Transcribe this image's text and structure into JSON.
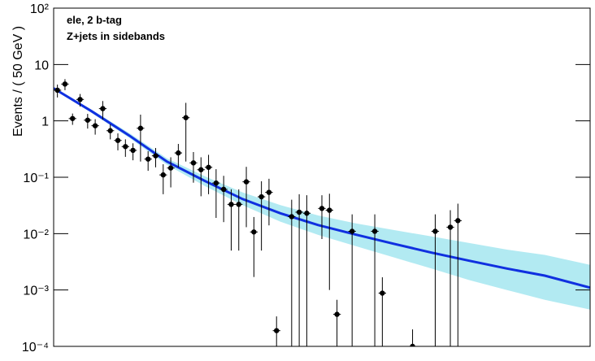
{
  "chart_data": {
    "type": "scatter",
    "ylabel": "Events / ( 50 GeV )",
    "annotations": [
      "ele, 2 b-tag",
      "Z+jets in sidebands"
    ],
    "log_y": true,
    "xlim": [
      0,
      3550
    ],
    "ylim": [
      0.0001,
      100
    ],
    "yticks": [
      {
        "value": 100,
        "label": "10²"
      },
      {
        "value": 10,
        "label": "10"
      },
      {
        "value": 1,
        "label": "1"
      },
      {
        "value": 0.1,
        "label": "10⁻¹"
      },
      {
        "value": 0.01,
        "label": "10⁻²"
      },
      {
        "value": 0.001,
        "label": "10⁻³"
      },
      {
        "value": 0.0001,
        "label": "10⁻⁴"
      }
    ],
    "bin_width": 50,
    "data": {
      "color": "#000000",
      "x": [
        25,
        75,
        125,
        175,
        225,
        275,
        325,
        375,
        425,
        475,
        525,
        575,
        625,
        675,
        725,
        775,
        825,
        875,
        925,
        975,
        1025,
        1075,
        1125,
        1175,
        1225,
        1275,
        1325,
        1375,
        1425,
        1475,
        1575,
        1625,
        1675,
        1775,
        1825,
        1875,
        1975,
        2125,
        2175,
        2375,
        2525,
        2625,
        2675
      ],
      "values": [
        3.5,
        4.5,
        1.1,
        2.4,
        1.03,
        0.82,
        1.65,
        0.67,
        0.45,
        0.35,
        0.3,
        0.74,
        0.21,
        0.24,
        0.11,
        0.146,
        0.27,
        1.14,
        0.18,
        0.136,
        0.15,
        0.079,
        0.061,
        0.033,
        0.033,
        0.083,
        0.0107,
        0.045,
        0.054,
        0.00019,
        0.02,
        0.024,
        0.023,
        0.028,
        0.026,
        0.00037,
        0.011,
        0.011,
        0.00088,
        0.0001,
        0.011,
        0.013,
        0.017
      ],
      "errors": [
        0.9,
        1.0,
        0.25,
        0.6,
        0.3,
        0.25,
        0.6,
        0.2,
        0.15,
        0.12,
        0.1,
        0.55,
        0.08,
        0.09,
        0.06,
        0.08,
        0.12,
        0.95,
        0.1,
        0.09,
        0.1,
        0.06,
        0.045,
        0.028,
        0.028,
        0.07,
        0.009,
        0.04,
        0.04,
        0.00015,
        0.02,
        0.026,
        0.025,
        0.02,
        0.025,
        0.0003,
        0.011,
        0.011,
        0.0008,
        0.0001,
        0.011,
        0.013,
        0.017
      ]
    },
    "fit": {
      "color": "#1030e0",
      "band_color": "#7fdcea",
      "x": [
        0,
        250,
        500,
        750,
        1000,
        1250,
        1500,
        1750,
        2000,
        2250,
        2500,
        2750,
        3000,
        3250,
        3550
      ],
      "values": [
        3.78,
        1.49,
        0.55,
        0.19,
        0.086,
        0.041,
        0.023,
        0.0142,
        0.0096,
        0.0066,
        0.0046,
        0.0033,
        0.0024,
        0.0018,
        0.0011
      ],
      "band_upper": [
        3.91,
        1.59,
        0.61,
        0.217,
        0.104,
        0.054,
        0.032,
        0.021,
        0.0152,
        0.0116,
        0.0089,
        0.0068,
        0.0052,
        0.0042,
        0.0028
      ],
      "band_lower": [
        3.65,
        1.39,
        0.5,
        0.166,
        0.07,
        0.032,
        0.0163,
        0.0095,
        0.006,
        0.0038,
        0.0024,
        0.0015,
        0.001,
        0.00067,
        0.00045
      ]
    }
  }
}
